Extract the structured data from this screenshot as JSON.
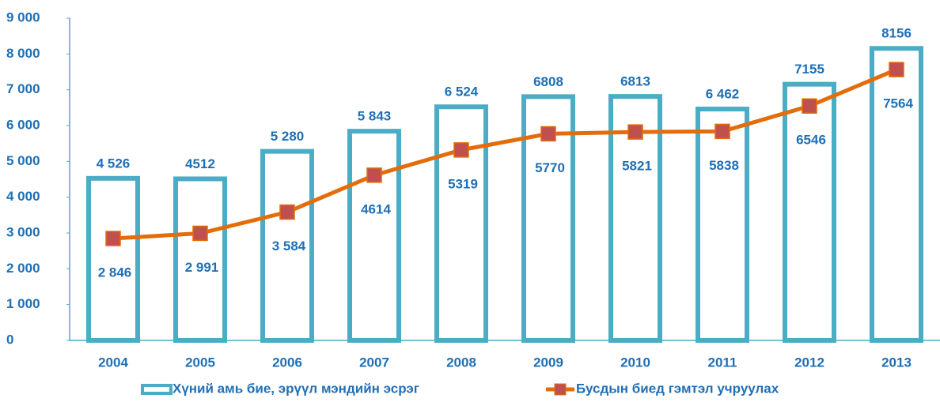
{
  "chart_data": {
    "type": "bar_line",
    "categories": [
      "2004",
      "2005",
      "2006",
      "2007",
      "2008",
      "2009",
      "2010",
      "2011",
      "2012",
      "2013"
    ],
    "series": [
      {
        "name": "Хүний амь бие, эрүүл мэндийн эсрэг",
        "type": "bar",
        "color": "#4bacc6",
        "values": [
          4526,
          4512,
          5280,
          5843,
          6524,
          6808,
          6813,
          6462,
          7155,
          8156
        ],
        "value_labels": [
          "4 526",
          "4512",
          "5 280",
          "5 843",
          "6 524",
          "6808",
          "6813",
          "6 462",
          "7155",
          "8156"
        ]
      },
      {
        "name": "Бусдын биед гэмтэл учруулах",
        "type": "line",
        "color": "#e46c0a",
        "marker_color": "#c0504d",
        "values": [
          2846,
          2991,
          3584,
          4614,
          5319,
          5770,
          5821,
          5838,
          6546,
          7564
        ],
        "value_labels": [
          "2 846",
          "2 991",
          "3 584",
          "4614",
          "5319",
          "5770",
          "5821",
          "5838",
          "6546",
          "7564"
        ]
      }
    ],
    "ylim": [
      0,
      9000
    ],
    "yticks": [
      0,
      {
        "value": 1000,
        "label": "1 000"
      },
      {
        "value": 2000,
        "label": "2 000"
      },
      {
        "value": 3000,
        "label": "3 000"
      },
      {
        "value": 4000,
        "label": "4 000"
      },
      {
        "value": 5000,
        "label": "5 000"
      },
      {
        "value": 6000,
        "label": "6 000"
      },
      {
        "value": 7000,
        "label": "7 000"
      },
      {
        "value": 8000,
        "label": "8 000"
      },
      {
        "value": 9000,
        "label": "9 000"
      }
    ],
    "legend": "bottom"
  }
}
